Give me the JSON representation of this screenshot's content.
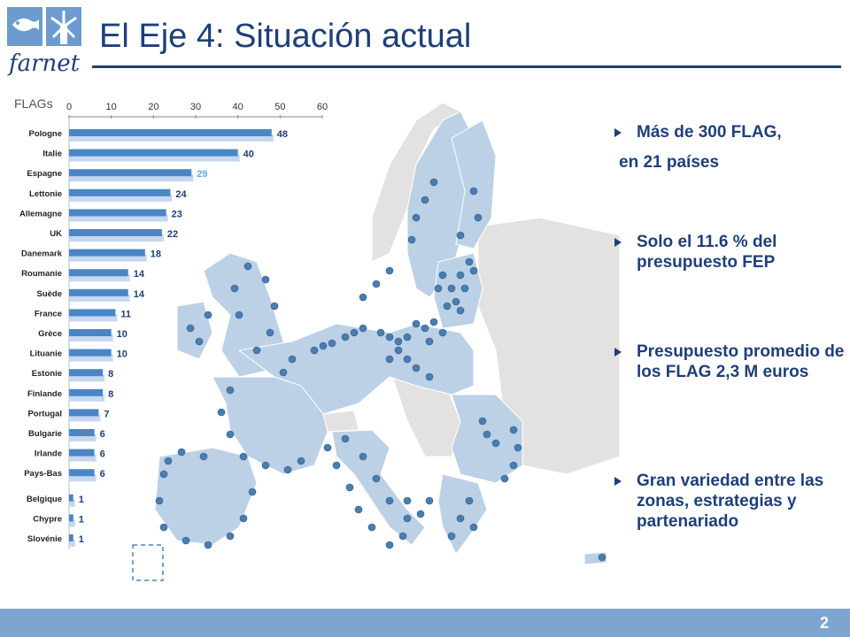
{
  "header": {
    "logo_text": "farnet",
    "title": "El Eje 4: Situación actual"
  },
  "bullets": {
    "b1_line1": "Más de 300 FLAG,",
    "b1_line2": "en 21 países",
    "b2": "Solo el 11.6 % del presupuesto FEP",
    "b3": "Presupuesto promedio de los FLAG 2,3 M euros",
    "b4": "Gran variedad entre las zonas, estrategias y partenariado"
  },
  "footer": {
    "page_number": "2"
  },
  "colors": {
    "title": "#1f3f79",
    "bar": "#4a86c6",
    "bar_shadow": "#c6d7ef",
    "label_highlight": "#5aaedb",
    "map_eu": "#bcd0e6",
    "map_non_eu": "#e4e2e0",
    "dot": "#4a7db0",
    "footer": "#7ea4d0"
  },
  "chart_data": {
    "type": "bar",
    "orientation": "horizontal",
    "title": "FLAGs",
    "xlim": [
      0,
      60
    ],
    "xticks": [
      0,
      10,
      20,
      30,
      40,
      50,
      60
    ],
    "categories": [
      "Pologne",
      "Italie",
      "Espagne",
      "Lettonie",
      "Allemagne",
      "UK",
      "Danemark",
      "Roumanie",
      "Suède",
      "France",
      "Grèce",
      "Lituanie",
      "Estonie",
      "Finlande",
      "Portugal",
      "Bulgarie",
      "Irlande",
      "Pays-Bas",
      "Belgique",
      "Chypre",
      "Slovénie"
    ],
    "values": [
      48,
      40,
      29,
      24,
      23,
      22,
      18,
      14,
      14,
      11,
      10,
      10,
      8,
      8,
      7,
      6,
      6,
      6,
      1,
      1,
      1
    ]
  }
}
